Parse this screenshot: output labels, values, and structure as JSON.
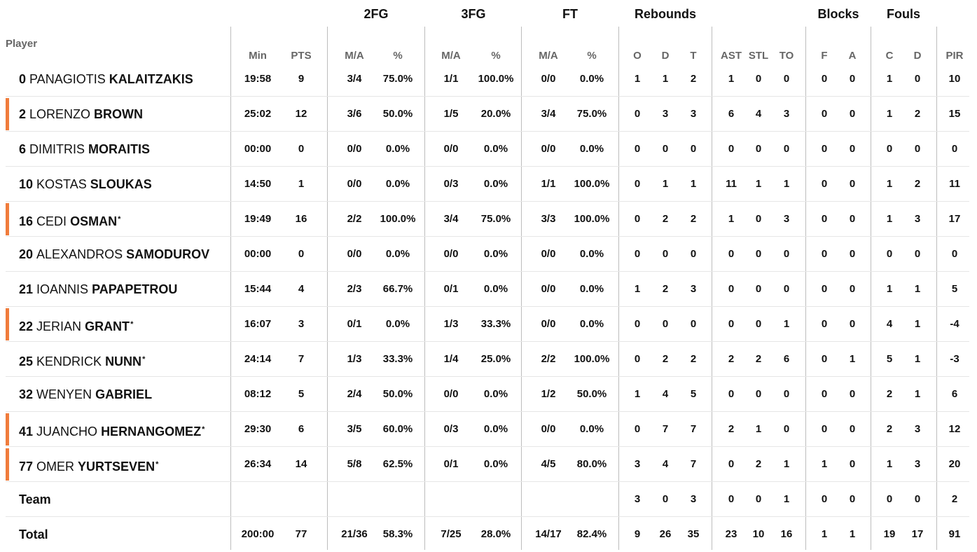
{
  "header": {
    "groups": [
      "2FG",
      "3FG",
      "FT",
      "Rebounds",
      "Blocks",
      "Fouls"
    ],
    "player_label": "Player",
    "columns": [
      "Min",
      "PTS",
      "M/A",
      "%",
      "M/A",
      "%",
      "M/A",
      "%",
      "O",
      "D",
      "T",
      "AST",
      "STL",
      "TO",
      "F",
      "A",
      "C",
      "D",
      "PIR"
    ]
  },
  "players": [
    {
      "number": "0",
      "first": "PANAGIOTIS",
      "last": "KALAITZAKIS",
      "starter": false,
      "stats": [
        "19:58",
        "9",
        "3/4",
        "75.0%",
        "1/1",
        "100.0%",
        "0/0",
        "0.0%",
        "1",
        "1",
        "2",
        "1",
        "0",
        "0",
        "0",
        "0",
        "1",
        "0",
        "10"
      ]
    },
    {
      "number": "2",
      "first": "LORENZO",
      "last": "BROWN",
      "starter": true,
      "stats": [
        "25:02",
        "12",
        "3/6",
        "50.0%",
        "1/5",
        "20.0%",
        "3/4",
        "75.0%",
        "0",
        "3",
        "3",
        "6",
        "4",
        "3",
        "0",
        "0",
        "1",
        "2",
        "15"
      ]
    },
    {
      "number": "6",
      "first": "DIMITRIS",
      "last": "MORAITIS",
      "starter": false,
      "stats": [
        "00:00",
        "0",
        "0/0",
        "0.0%",
        "0/0",
        "0.0%",
        "0/0",
        "0.0%",
        "0",
        "0",
        "0",
        "0",
        "0",
        "0",
        "0",
        "0",
        "0",
        "0",
        "0"
      ]
    },
    {
      "number": "10",
      "first": "KOSTAS",
      "last": "SLOUKAS",
      "starter": false,
      "stats": [
        "14:50",
        "1",
        "0/0",
        "0.0%",
        "0/3",
        "0.0%",
        "1/1",
        "100.0%",
        "0",
        "1",
        "1",
        "11",
        "1",
        "1",
        "0",
        "0",
        "1",
        "2",
        "11"
      ]
    },
    {
      "number": "16",
      "first": "CEDI",
      "last": "OSMAN",
      "mark": "*",
      "starter": true,
      "stats": [
        "19:49",
        "16",
        "2/2",
        "100.0%",
        "3/4",
        "75.0%",
        "3/3",
        "100.0%",
        "0",
        "2",
        "2",
        "1",
        "0",
        "3",
        "0",
        "0",
        "1",
        "3",
        "17"
      ]
    },
    {
      "number": "20",
      "first": "ALEXANDROS",
      "last": "SAMODUROV",
      "starter": false,
      "stats": [
        "00:00",
        "0",
        "0/0",
        "0.0%",
        "0/0",
        "0.0%",
        "0/0",
        "0.0%",
        "0",
        "0",
        "0",
        "0",
        "0",
        "0",
        "0",
        "0",
        "0",
        "0",
        "0"
      ]
    },
    {
      "number": "21",
      "first": "IOANNIS",
      "last": "PAPAPETROU",
      "starter": false,
      "stats": [
        "15:44",
        "4",
        "2/3",
        "66.7%",
        "0/1",
        "0.0%",
        "0/0",
        "0.0%",
        "1",
        "2",
        "3",
        "0",
        "0",
        "0",
        "0",
        "0",
        "1",
        "1",
        "5"
      ]
    },
    {
      "number": "22",
      "first": "JERIAN",
      "last": "GRANT",
      "mark": "*",
      "starter": true,
      "stats": [
        "16:07",
        "3",
        "0/1",
        "0.0%",
        "1/3",
        "33.3%",
        "0/0",
        "0.0%",
        "0",
        "0",
        "0",
        "0",
        "0",
        "1",
        "0",
        "0",
        "4",
        "1",
        "-4"
      ]
    },
    {
      "number": "25",
      "first": "KENDRICK",
      "last": "NUNN",
      "mark": "*",
      "starter": false,
      "stats": [
        "24:14",
        "7",
        "1/3",
        "33.3%",
        "1/4",
        "25.0%",
        "2/2",
        "100.0%",
        "0",
        "2",
        "2",
        "2",
        "2",
        "6",
        "0",
        "1",
        "5",
        "1",
        "-3"
      ]
    },
    {
      "number": "32",
      "first": "WENYEN",
      "last": "GABRIEL",
      "starter": false,
      "stats": [
        "08:12",
        "5",
        "2/4",
        "50.0%",
        "0/0",
        "0.0%",
        "1/2",
        "50.0%",
        "1",
        "4",
        "5",
        "0",
        "0",
        "0",
        "0",
        "0",
        "2",
        "1",
        "6"
      ]
    },
    {
      "number": "41",
      "first": "JUANCHO",
      "last": "HERNANGOMEZ",
      "mark": "*",
      "starter": true,
      "stats": [
        "29:30",
        "6",
        "3/5",
        "60.0%",
        "0/3",
        "0.0%",
        "0/0",
        "0.0%",
        "0",
        "7",
        "7",
        "2",
        "1",
        "0",
        "0",
        "0",
        "2",
        "3",
        "12"
      ]
    },
    {
      "number": "77",
      "first": "OMER",
      "last": "YURTSEVEN",
      "mark": "*",
      "starter": true,
      "stats": [
        "26:34",
        "14",
        "5/8",
        "62.5%",
        "0/1",
        "0.0%",
        "4/5",
        "80.0%",
        "3",
        "4",
        "7",
        "0",
        "2",
        "1",
        "1",
        "0",
        "1",
        "3",
        "20"
      ]
    }
  ],
  "team": {
    "label": "Team",
    "stats": [
      "",
      "",
      "",
      "",
      "",
      "",
      "",
      "",
      "3",
      "0",
      "3",
      "0",
      "0",
      "1",
      "0",
      "0",
      "0",
      "0",
      "2"
    ]
  },
  "total": {
    "label": "Total",
    "stats": [
      "200:00",
      "77",
      "21/36",
      "58.3%",
      "7/25",
      "28.0%",
      "14/17",
      "82.4%",
      "9",
      "26",
      "35",
      "23",
      "10",
      "16",
      "1",
      "1",
      "19",
      "17",
      "91"
    ]
  },
  "colors": {
    "starter_bar": "#f07c3c",
    "header_text": "#666666",
    "grid_line": "#bdbdbd"
  }
}
